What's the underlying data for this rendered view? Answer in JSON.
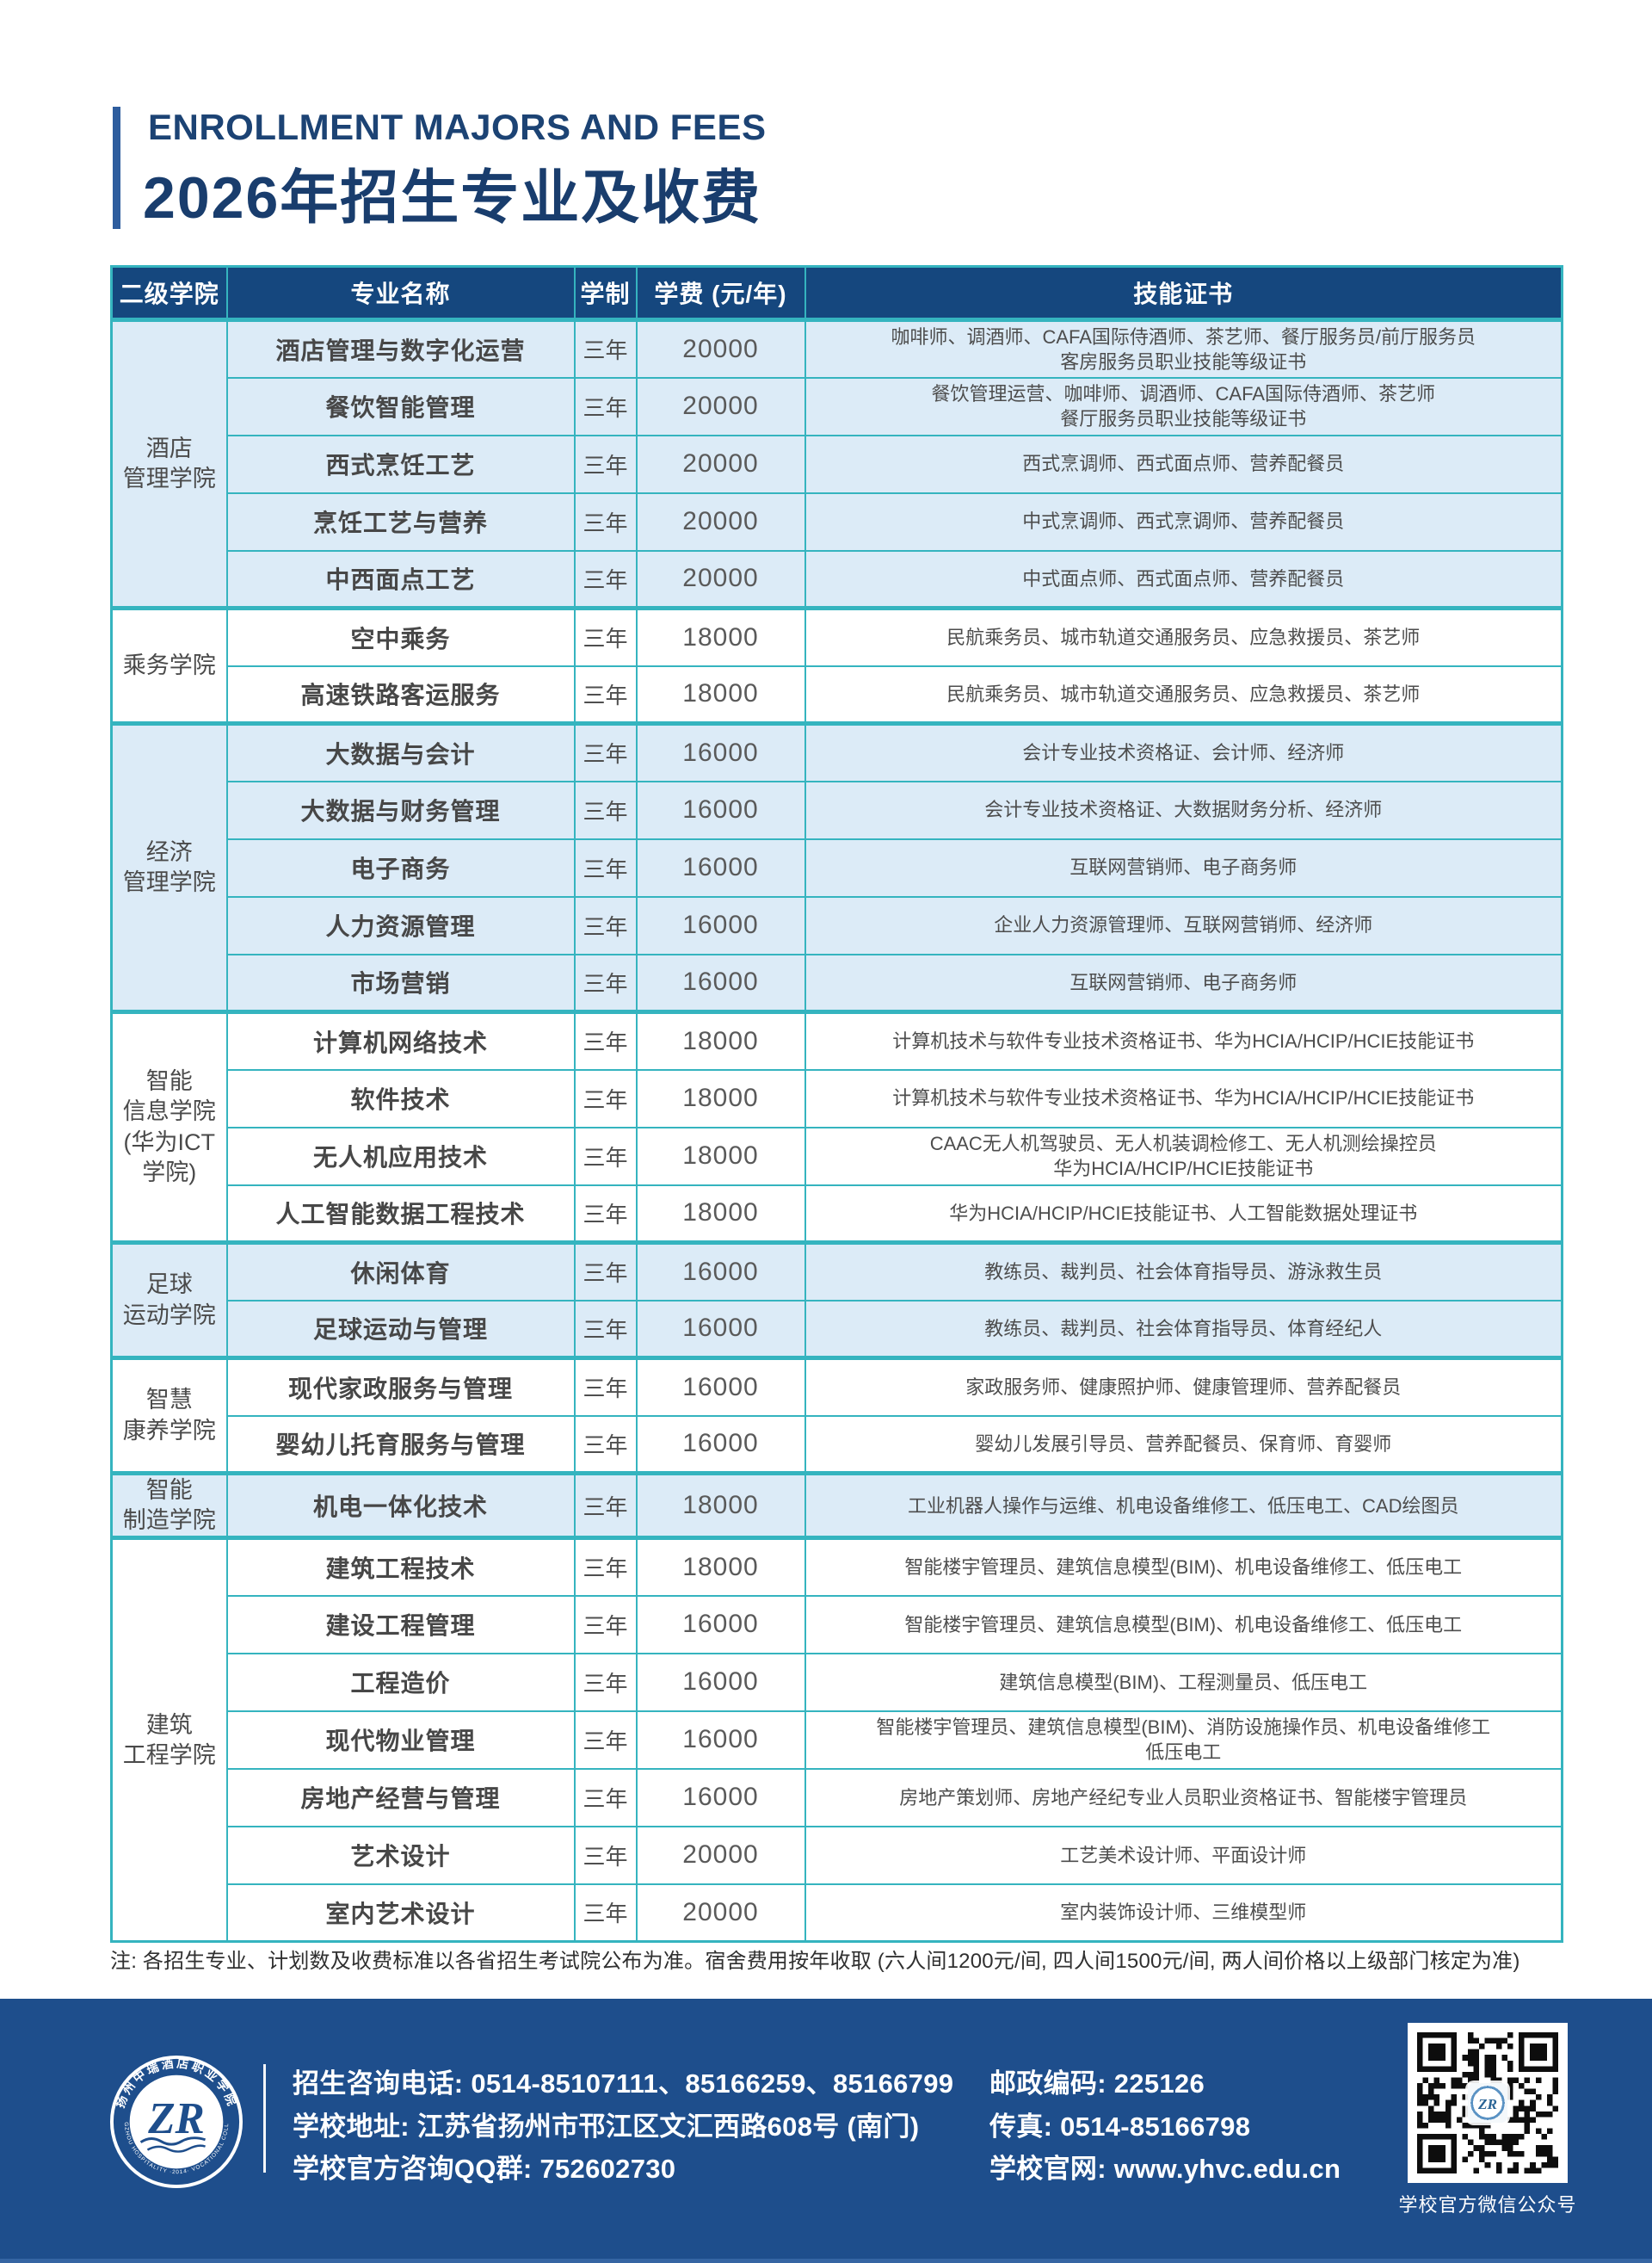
{
  "header": {
    "title_en": "ENROLLMENT MAJORS AND FEES",
    "title_zh": "2026年招生专业及收费"
  },
  "table": {
    "columns": [
      "二级学院",
      "专业名称",
      "学制",
      "学费 (元/年)",
      "技能证书"
    ],
    "groups": [
      {
        "college_lines": [
          "酒店",
          "管理学院"
        ],
        "rows": [
          {
            "major": "酒店管理与数字化运营",
            "duration": "三年",
            "fee": "20000",
            "certs": [
              "咖啡师、调酒师、CAFA国际侍酒师、茶艺师、餐厅服务员/前厅服务员",
              "客房服务员职业技能等级证书"
            ]
          },
          {
            "major": "餐饮智能管理",
            "duration": "三年",
            "fee": "20000",
            "certs": [
              "餐饮管理运营、咖啡师、调酒师、CAFA国际侍酒师、茶艺师",
              "餐厅服务员职业技能等级证书"
            ]
          },
          {
            "major": "西式烹饪工艺",
            "duration": "三年",
            "fee": "20000",
            "certs": [
              "西式烹调师、西式面点师、营养配餐员"
            ]
          },
          {
            "major": "烹饪工艺与营养",
            "duration": "三年",
            "fee": "20000",
            "certs": [
              "中式烹调师、西式烹调师、营养配餐员"
            ]
          },
          {
            "major": "中西面点工艺",
            "duration": "三年",
            "fee": "20000",
            "certs": [
              "中式面点师、西式面点师、营养配餐员"
            ]
          }
        ]
      },
      {
        "college_lines": [
          "乘务学院"
        ],
        "rows": [
          {
            "major": "空中乘务",
            "duration": "三年",
            "fee": "18000",
            "certs": [
              "民航乘务员、城市轨道交通服务员、应急救援员、茶艺师"
            ]
          },
          {
            "major": "高速铁路客运服务",
            "duration": "三年",
            "fee": "18000",
            "certs": [
              "民航乘务员、城市轨道交通服务员、应急救援员、茶艺师"
            ]
          }
        ]
      },
      {
        "college_lines": [
          "经济",
          "管理学院"
        ],
        "rows": [
          {
            "major": "大数据与会计",
            "duration": "三年",
            "fee": "16000",
            "certs": [
              "会计专业技术资格证、会计师、经济师"
            ]
          },
          {
            "major": "大数据与财务管理",
            "duration": "三年",
            "fee": "16000",
            "certs": [
              "会计专业技术资格证、大数据财务分析、经济师"
            ]
          },
          {
            "major": "电子商务",
            "duration": "三年",
            "fee": "16000",
            "certs": [
              "互联网营销师、电子商务师"
            ]
          },
          {
            "major": "人力资源管理",
            "duration": "三年",
            "fee": "16000",
            "certs": [
              "企业人力资源管理师、互联网营销师、经济师"
            ]
          },
          {
            "major": "市场营销",
            "duration": "三年",
            "fee": "16000",
            "certs": [
              "互联网营销师、电子商务师"
            ]
          }
        ]
      },
      {
        "college_lines": [
          "智能",
          "信息学院",
          "(华为ICT",
          "学院)"
        ],
        "rows": [
          {
            "major": "计算机网络技术",
            "duration": "三年",
            "fee": "18000",
            "certs": [
              "计算机技术与软件专业技术资格证书、华为HCIA/HCIP/HCIE技能证书"
            ]
          },
          {
            "major": "软件技术",
            "duration": "三年",
            "fee": "18000",
            "certs": [
              "计算机技术与软件专业技术资格证书、华为HCIA/HCIP/HCIE技能证书"
            ]
          },
          {
            "major": "无人机应用技术",
            "duration": "三年",
            "fee": "18000",
            "certs": [
              "CAAC无人机驾驶员、无人机装调检修工、无人机测绘操控员",
              "华为HCIA/HCIP/HCIE技能证书"
            ]
          },
          {
            "major": "人工智能数据工程技术",
            "duration": "三年",
            "fee": "18000",
            "certs": [
              "华为HCIA/HCIP/HCIE技能证书、人工智能数据处理证书"
            ]
          }
        ]
      },
      {
        "college_lines": [
          "足球",
          "运动学院"
        ],
        "rows": [
          {
            "major": "休闲体育",
            "duration": "三年",
            "fee": "16000",
            "certs": [
              "教练员、裁判员、社会体育指导员、游泳救生员"
            ]
          },
          {
            "major": "足球运动与管理",
            "duration": "三年",
            "fee": "16000",
            "certs": [
              "教练员、裁判员、社会体育指导员、体育经纪人"
            ]
          }
        ]
      },
      {
        "college_lines": [
          "智慧",
          "康养学院"
        ],
        "rows": [
          {
            "major": "现代家政服务与管理",
            "duration": "三年",
            "fee": "16000",
            "certs": [
              "家政服务师、健康照护师、健康管理师、营养配餐员"
            ]
          },
          {
            "major": "婴幼儿托育服务与管理",
            "duration": "三年",
            "fee": "16000",
            "certs": [
              "婴幼儿发展引导员、营养配餐员、保育师、育婴师"
            ]
          }
        ]
      },
      {
        "college_lines": [
          "智能",
          "制造学院"
        ],
        "rows": [
          {
            "major": "机电一体化技术",
            "duration": "三年",
            "fee": "18000",
            "certs": [
              "工业机器人操作与运维、机电设备维修工、低压电工、CAD绘图员"
            ]
          }
        ]
      },
      {
        "college_lines": [
          "建筑",
          "工程学院"
        ],
        "rows": [
          {
            "major": "建筑工程技术",
            "duration": "三年",
            "fee": "18000",
            "certs": [
              "智能楼宇管理员、建筑信息模型(BIM)、机电设备维修工、低压电工"
            ]
          },
          {
            "major": "建设工程管理",
            "duration": "三年",
            "fee": "16000",
            "certs": [
              "智能楼宇管理员、建筑信息模型(BIM)、机电设备维修工、低压电工"
            ]
          },
          {
            "major": "工程造价",
            "duration": "三年",
            "fee": "16000",
            "certs": [
              "建筑信息模型(BIM)、工程测量员、低压电工"
            ]
          },
          {
            "major": "现代物业管理",
            "duration": "三年",
            "fee": "16000",
            "certs": [
              "智能楼宇管理员、建筑信息模型(BIM)、消防设施操作员、机电设备维修工",
              "低压电工"
            ]
          },
          {
            "major": "房地产经营与管理",
            "duration": "三年",
            "fee": "16000",
            "certs": [
              "房地产策划师、房地产经纪专业人员职业资格证书、智能楼宇管理员"
            ]
          },
          {
            "major": "艺术设计",
            "duration": "三年",
            "fee": "20000",
            "certs": [
              "工艺美术设计师、平面设计师"
            ]
          },
          {
            "major": "室内艺术设计",
            "duration": "三年",
            "fee": "20000",
            "certs": [
              "室内装饰设计师、三维模型师"
            ]
          }
        ]
      }
    ]
  },
  "note": "注: 各招生专业、计划数及收费标准以各省招生考试院公布为准。宿舍费用按年收取 (六人间1200元/间, 四人间1500元/间, 两人间价格以上级部门核定为准)",
  "footer": {
    "contact_lines": [
      "招生咨询电话: 0514-85107111、85166259、85166799",
      "学校地址: 江苏省扬州市邗江区文汇西路608号 (南门)",
      "学校官方咨询QQ群: 752602730"
    ],
    "info_lines": [
      "邮政编码: 225126",
      "传真: 0514-85166798",
      "学校官网: www.yhvc.edu.cn"
    ],
    "qr_caption": "学校官方微信公众号",
    "logo": {
      "monogram": "ZR",
      "ring_text_zh": "扬州中瑞酒店职业学院",
      "ring_text_en": "YANGZHOU HOSPITALITY ·2014· VOCATIONAL COLLEGE"
    }
  },
  "colors": {
    "table_header_navy": "#15477E",
    "footer_blue": "#1E4E8C",
    "border_teal": "#35B4BF",
    "row_light_blue": "#DCEBF7",
    "title_navy": "#193D6D",
    "accent_bar_blue": "#2E5D9E"
  }
}
